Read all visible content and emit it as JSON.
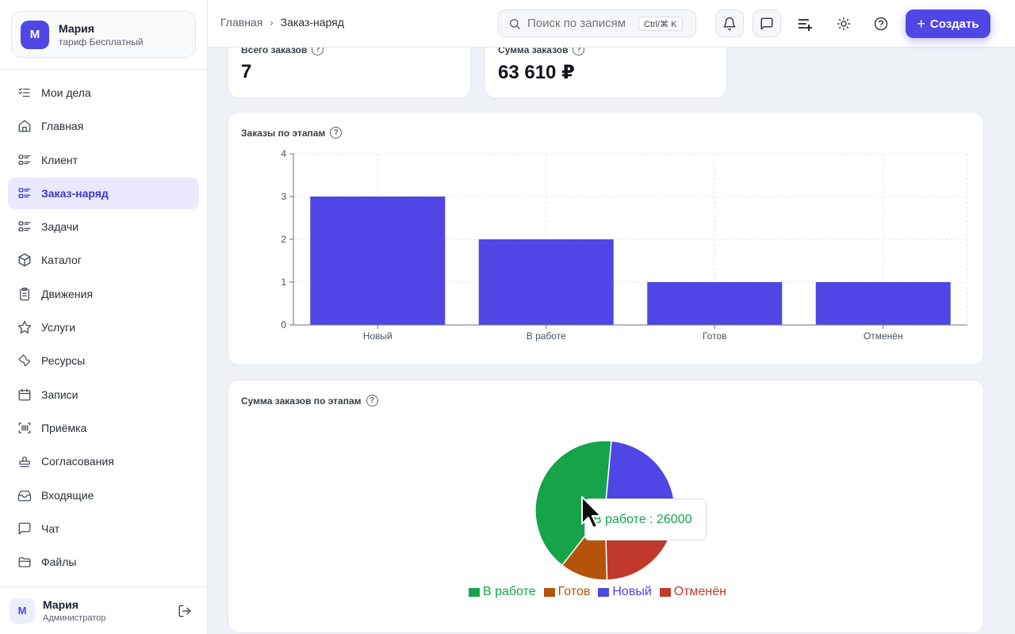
{
  "account": {
    "initial": "М",
    "name": "Мария",
    "plan": "тариф Бесплатный"
  },
  "nav": [
    {
      "label": "Мои дела",
      "icon": "checklist-icon",
      "active": false
    },
    {
      "label": "Главная",
      "icon": "home-icon",
      "active": false
    },
    {
      "label": "Клиент",
      "icon": "list-icon",
      "active": false
    },
    {
      "label": "Заказ-наряд",
      "icon": "list-icon",
      "active": true
    },
    {
      "label": "Задачи",
      "icon": "list-icon",
      "active": false
    },
    {
      "label": "Каталог",
      "icon": "box-icon",
      "active": false
    },
    {
      "label": "Движения",
      "icon": "clipboard-icon",
      "active": false
    },
    {
      "label": "Услуги",
      "icon": "star-icon",
      "active": false
    },
    {
      "label": "Ресурсы",
      "icon": "wrench-icon",
      "active": false
    },
    {
      "label": "Записи",
      "icon": "calendar-icon",
      "active": false
    },
    {
      "label": "Приёмка",
      "icon": "barcode-scan-icon",
      "active": false
    },
    {
      "label": "Согласования",
      "icon": "stamp-icon",
      "active": false
    },
    {
      "label": "Входящие",
      "icon": "inbox-icon",
      "active": false
    },
    {
      "label": "Чат",
      "icon": "chat-icon",
      "active": false
    },
    {
      "label": "Файлы",
      "icon": "folder-icon",
      "active": false
    }
  ],
  "user": {
    "initial": "М",
    "name": "Мария",
    "role": "Администратор"
  },
  "header": {
    "breadcrumb": [
      "Главная",
      "Заказ-наряд"
    ],
    "search_placeholder": "Поиск по записям",
    "search_shortcut": "Ctrl/⌘ K",
    "create_label": "Создать"
  },
  "stats": {
    "total_label": "Всего заказов",
    "total_value": "7",
    "sum_label": "Сумма заказов",
    "sum_value": "63 610 ₽"
  },
  "bar_card_title": "Заказы по этапам",
  "pie_card_title": "Сумма заказов по этапам",
  "colors": {
    "accent": "#4f46e5",
    "green": "#16a34a",
    "orange": "#b45309",
    "blue": "#4f46e5",
    "red": "#c0392b"
  },
  "chart_data": [
    {
      "type": "bar",
      "categories": [
        "Новый",
        "В работе",
        "Готов",
        "Отменён"
      ],
      "values": [
        3,
        2,
        1,
        1
      ],
      "title": "Заказы по этапам",
      "ylim": [
        0,
        4
      ],
      "yticks": [
        0,
        1,
        2,
        3,
        4
      ],
      "grid": true
    },
    {
      "type": "pie",
      "title": "Сумма заказов по этапам",
      "labels": [
        "В работе",
        "Готов",
        "Новый",
        "Отменён"
      ],
      "values": [
        26000,
        7000,
        18000,
        12610
      ],
      "colors": [
        "#16a34a",
        "#b45309",
        "#4f46e5",
        "#c0392b"
      ],
      "legend": "bottom",
      "tooltip": {
        "label": "В работе",
        "value": 26000,
        "text": "В работе : 26000"
      }
    }
  ]
}
